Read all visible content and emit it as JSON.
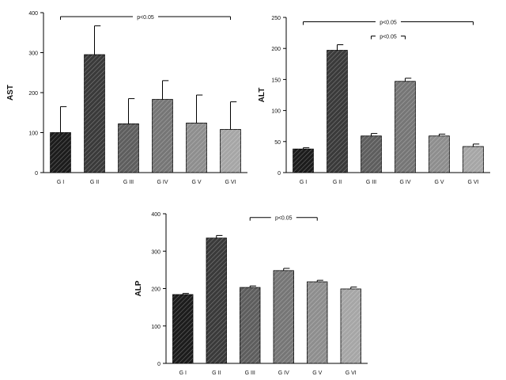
{
  "chart_data": [
    {
      "type": "bar",
      "ylabel": "AST",
      "xlabel": "",
      "title": "",
      "categories": [
        "G I",
        "G II",
        "G III",
        "G IV",
        "G V",
        "G VI"
      ],
      "values": [
        100,
        295,
        122,
        183,
        124,
        108
      ],
      "errors": [
        65,
        72,
        63,
        47,
        70,
        69
      ],
      "ylim": [
        0,
        400
      ],
      "yticks": [
        0,
        100,
        200,
        300,
        400
      ],
      "fills": [
        "#1c1c1c",
        "#3a3a3a",
        "#5e5e5e",
        "#767676",
        "#8e8e8e",
        "#a6a6a6"
      ],
      "annotations": [
        {
          "text": "p<0.05",
          "from": "G I",
          "to": "G VI",
          "y": 390
        }
      ]
    },
    {
      "type": "bar",
      "ylabel": "ALT",
      "xlabel": "",
      "title": "",
      "categories": [
        "G I",
        "G II",
        "G III",
        "G IV",
        "G V",
        "G VI"
      ],
      "values": [
        38,
        197,
        59,
        147,
        59,
        42
      ],
      "errors": [
        2,
        9,
        4,
        5,
        3,
        4
      ],
      "ylim": [
        0,
        250
      ],
      "yticks": [
        0,
        50,
        100,
        150,
        200,
        250
      ],
      "fills": [
        "#1c1c1c",
        "#3a3a3a",
        "#5e5e5e",
        "#767676",
        "#8e8e8e",
        "#a6a6a6"
      ],
      "annotations": [
        {
          "text": "p<0.05",
          "from": "G I",
          "to": "G VI",
          "y": 243
        },
        {
          "text": "p<0.05",
          "from": "G III",
          "to": "G IV",
          "y": 220
        }
      ]
    },
    {
      "type": "bar",
      "ylabel": "ALP",
      "xlabel": "",
      "title": "",
      "categories": [
        "G I",
        "G II",
        "G III",
        "G IV",
        "G V",
        "G VI"
      ],
      "values": [
        184,
        335,
        203,
        248,
        218,
        199
      ],
      "errors": [
        3,
        7,
        4,
        6,
        4,
        5
      ],
      "ylim": [
        0,
        400
      ],
      "yticks": [
        0,
        100,
        200,
        300,
        400
      ],
      "fills": [
        "#1c1c1c",
        "#3a3a3a",
        "#5e5e5e",
        "#767676",
        "#8e8e8e",
        "#a6a6a6"
      ],
      "annotations": [
        {
          "text": "p<0.05",
          "from": "G III",
          "to": "G V",
          "y": 390
        }
      ]
    }
  ]
}
